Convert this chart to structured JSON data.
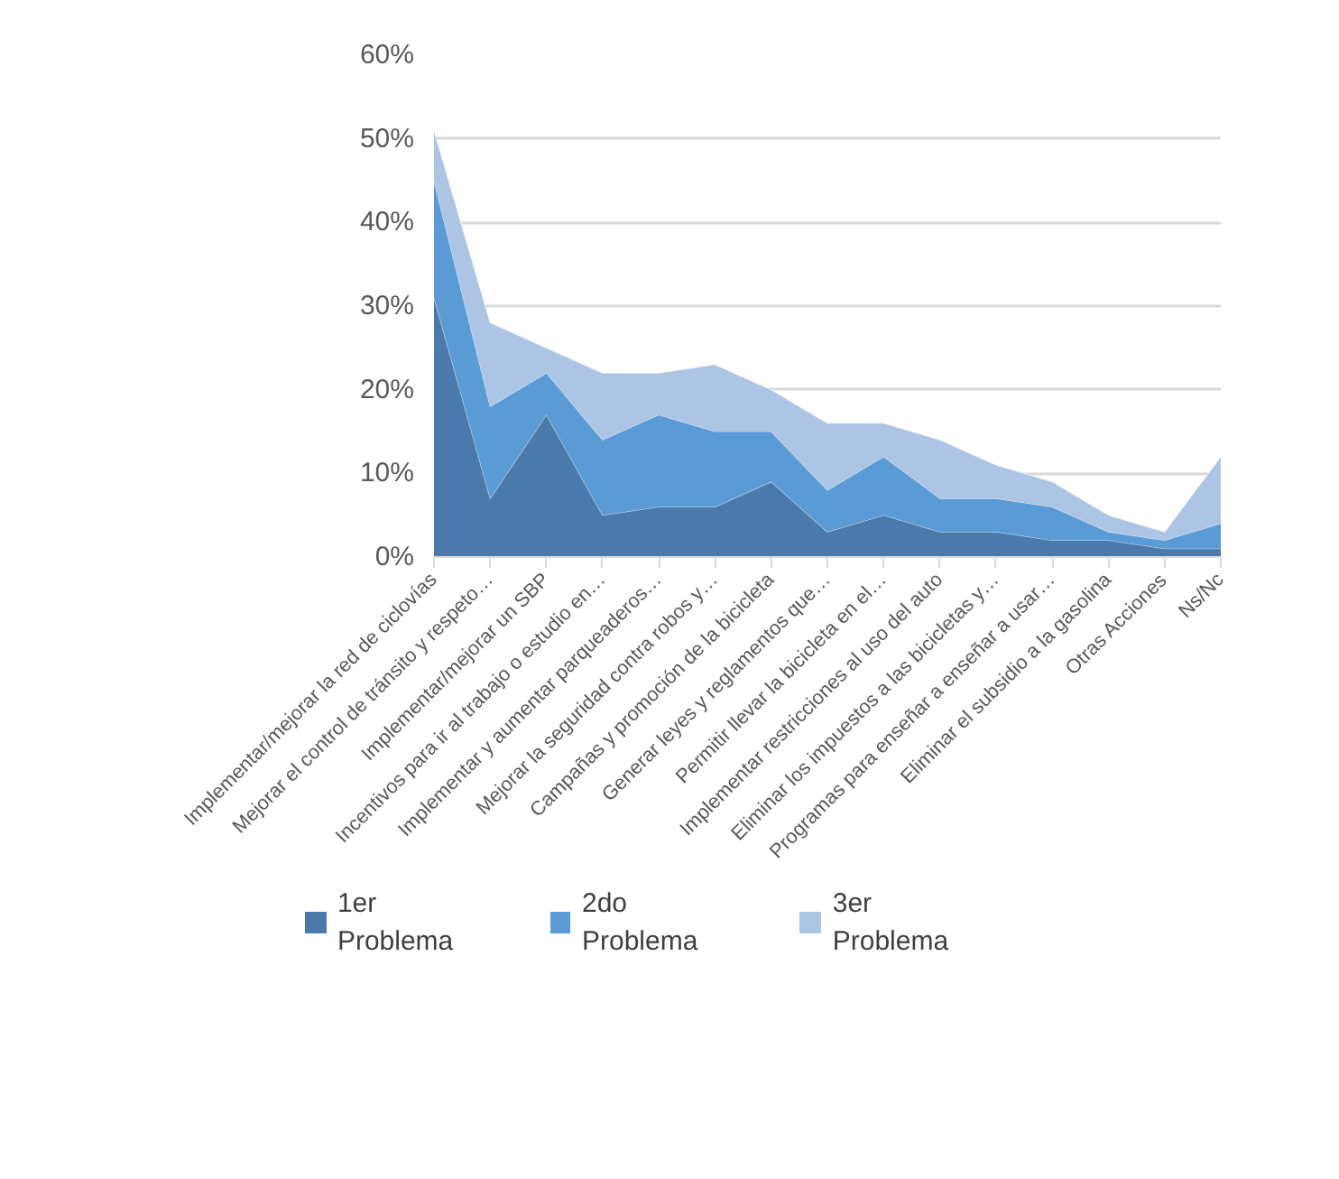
{
  "chart_data": {
    "type": "area",
    "stacked": true,
    "categories": [
      "Implementar/mejorar la red de ciclovías",
      "Mejorar el control de tránsito y respeto…",
      "Implementar/mejorar un SBP",
      "Incentivos para ir al trabajo o estudio en…",
      "Implementar y aumentar parqueaderos…",
      "Mejorar la seguridad contra robos y…",
      "Campañas y promoción de la bicicleta",
      "Generar leyes y reglamentos que…",
      "Permitir llevar la bicicleta en el…",
      "Implementar restricciones al uso del auto",
      "Eliminar los impuestos a las bicicletas y…",
      "Programas para enseñar a enseñar a usar…",
      "Eliminar el subsidio a la gasolina",
      "Otras Acciones",
      "Ns/Nc"
    ],
    "series": [
      {
        "name": "1er Problema",
        "color": "#4a7aab",
        "values": [
          31,
          7,
          17,
          5,
          6,
          6,
          9,
          3,
          5,
          3,
          3,
          2,
          2,
          1,
          1
        ]
      },
      {
        "name": "2do Problema",
        "color": "#5b9bd5",
        "values": [
          14,
          11,
          5,
          9,
          11,
          9,
          6,
          5,
          7,
          4,
          4,
          4,
          1,
          1,
          3
        ]
      },
      {
        "name": "3er Problema",
        "color": "#adc5e4",
        "values": [
          6,
          10,
          3,
          8,
          5,
          8,
          5,
          8,
          4,
          7,
          4,
          3,
          2,
          1,
          8
        ]
      }
    ],
    "ylim": [
      0,
      60
    ],
    "yticks": [
      {
        "value": 0,
        "label": "0%"
      },
      {
        "value": 10,
        "label": "10%"
      },
      {
        "value": 20,
        "label": "20%"
      },
      {
        "value": 30,
        "label": "30%"
      },
      {
        "value": 40,
        "label": "40%"
      },
      {
        "value": 50,
        "label": "50%"
      },
      {
        "value": 60,
        "label": "60%"
      }
    ],
    "grid": "y",
    "legend": "bottom"
  }
}
